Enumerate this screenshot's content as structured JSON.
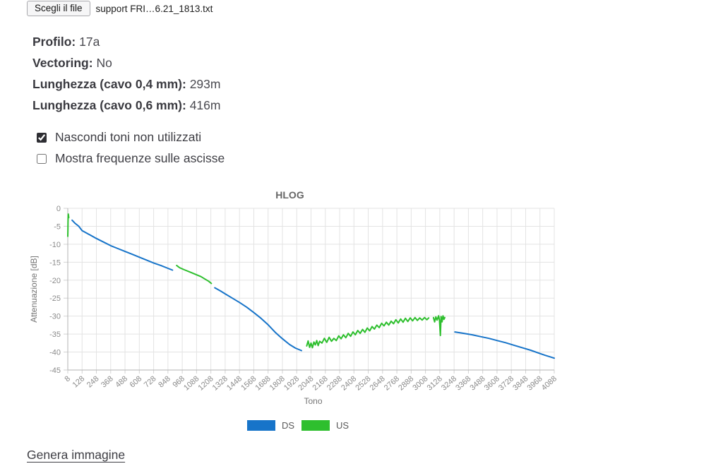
{
  "punct": {
    "colon": ": "
  },
  "file_input": {
    "button_label": "Scegli il file",
    "filename": "support FRI…6.21_1813.txt"
  },
  "info": [
    {
      "label": "Profilo",
      "value": "17a"
    },
    {
      "label": "Vectoring",
      "value": "No"
    },
    {
      "label": "Lunghezza (cavo 0,4 mm)",
      "value": "293m"
    },
    {
      "label": "Lunghezza (cavo 0,6 mm)",
      "value": "416m"
    }
  ],
  "options": [
    {
      "label": "Nascondi toni non utilizzati",
      "checked": true
    },
    {
      "label": "Mostra frequenze sulle ascisse",
      "checked": false
    }
  ],
  "actions": {
    "generate_link": "Genera immagine"
  },
  "chart_data": {
    "type": "line",
    "title": "HLOG",
    "xlabel": "Tono",
    "ylabel": "Attenuazione [dB]",
    "x_range": [
      8,
      4088
    ],
    "y_range": [
      -45,
      0
    ],
    "x_ticks": [
      8,
      128,
      248,
      368,
      488,
      608,
      728,
      848,
      968,
      1088,
      1208,
      1328,
      1448,
      1568,
      1688,
      1808,
      1928,
      2048,
      2168,
      2288,
      2408,
      2528,
      2648,
      2768,
      2888,
      3008,
      3128,
      3248,
      3368,
      3488,
      3608,
      3728,
      3848,
      3968,
      4088
    ],
    "y_ticks": [
      0,
      -5,
      -10,
      -15,
      -20,
      -25,
      -30,
      -35,
      -40,
      -45
    ],
    "grid": true,
    "legend_position": "bottom",
    "colors": {
      "grid": "#e3e3e3",
      "axis": "#b3b3b3",
      "tick_text": "#8a8a8a",
      "title_text": "#666666",
      "label_text": "#757575",
      "legend_text": "#595959"
    },
    "series": [
      {
        "name": "DS",
        "color": "#1774c9",
        "segments": [
          [
            [
              44,
              -3.3
            ],
            [
              70,
              -4.2
            ],
            [
              100,
              -5.0
            ],
            [
              128,
              -6.2
            ],
            [
              188,
              -7.3
            ],
            [
              248,
              -8.4
            ],
            [
              308,
              -9.4
            ],
            [
              368,
              -10.4
            ],
            [
              428,
              -11.2
            ],
            [
              488,
              -12.0
            ],
            [
              548,
              -12.8
            ],
            [
              608,
              -13.6
            ],
            [
              668,
              -14.4
            ],
            [
              728,
              -15.2
            ],
            [
              788,
              -15.9
            ],
            [
              848,
              -16.7
            ],
            [
              886,
              -17.2
            ]
          ],
          [
            [
              1241,
              -22.1
            ],
            [
              1288,
              -23.0
            ],
            [
              1328,
              -23.8
            ],
            [
              1388,
              -25.0
            ],
            [
              1448,
              -26.2
            ],
            [
              1508,
              -27.5
            ],
            [
              1568,
              -29.0
            ],
            [
              1628,
              -30.6
            ],
            [
              1688,
              -32.4
            ],
            [
              1748,
              -34.5
            ],
            [
              1808,
              -36.3
            ],
            [
              1868,
              -37.9
            ],
            [
              1918,
              -38.9
            ],
            [
              1968,
              -39.6
            ]
          ],
          [
            [
              3255,
              -34.4
            ],
            [
              3330,
              -34.8
            ],
            [
              3400,
              -35.2
            ],
            [
              3470,
              -35.7
            ],
            [
              3540,
              -36.2
            ],
            [
              3610,
              -36.8
            ],
            [
              3680,
              -37.4
            ],
            [
              3750,
              -38.1
            ],
            [
              3820,
              -38.8
            ],
            [
              3890,
              -39.5
            ],
            [
              3950,
              -40.2
            ],
            [
              4010,
              -40.9
            ],
            [
              4050,
              -41.3
            ],
            [
              4088,
              -41.7
            ]
          ]
        ]
      },
      {
        "name": "US",
        "color": "#2ebf2e",
        "segments": [
          [
            [
              8,
              -7.8
            ],
            [
              9,
              -6.0
            ],
            [
              10,
              -4.0
            ],
            [
              11,
              -2.3
            ],
            [
              12,
              -1.6
            ],
            [
              14,
              -1.9
            ],
            [
              16,
              -2.6
            ]
          ],
          [
            [
              921,
              -15.9
            ],
            [
              945,
              -16.5
            ],
            [
              985,
              -17.1
            ],
            [
              1030,
              -17.7
            ],
            [
              1080,
              -18.4
            ],
            [
              1125,
              -19.0
            ],
            [
              1160,
              -19.7
            ],
            [
              1190,
              -20.3
            ],
            [
              1212,
              -20.9
            ]
          ],
          [
            [
              2012,
              -38.3
            ],
            [
              2024,
              -36.9
            ],
            [
              2036,
              -38.7
            ],
            [
              2048,
              -37.5
            ],
            [
              2060,
              -38.8
            ],
            [
              2072,
              -37.2
            ],
            [
              2084,
              -38.0
            ],
            [
              2096,
              -36.8
            ],
            [
              2108,
              -38.2
            ],
            [
              2120,
              -37.0
            ],
            [
              2140,
              -37.5
            ],
            [
              2160,
              -36.2
            ],
            [
              2180,
              -37.3
            ],
            [
              2200,
              -35.9
            ],
            [
              2220,
              -37.0
            ],
            [
              2240,
              -36.2
            ],
            [
              2260,
              -36.8
            ],
            [
              2280,
              -35.5
            ],
            [
              2300,
              -36.3
            ],
            [
              2320,
              -35.2
            ],
            [
              2340,
              -36.0
            ],
            [
              2360,
              -34.8
            ],
            [
              2380,
              -35.6
            ],
            [
              2400,
              -34.4
            ],
            [
              2420,
              -35.2
            ],
            [
              2440,
              -34.0
            ],
            [
              2460,
              -34.8
            ],
            [
              2480,
              -33.7
            ],
            [
              2500,
              -34.5
            ],
            [
              2520,
              -33.3
            ],
            [
              2540,
              -34.1
            ],
            [
              2560,
              -32.9
            ],
            [
              2580,
              -33.6
            ],
            [
              2600,
              -32.5
            ],
            [
              2620,
              -33.2
            ],
            [
              2640,
              -32.0
            ],
            [
              2660,
              -32.7
            ],
            [
              2680,
              -31.7
            ],
            [
              2700,
              -32.5
            ],
            [
              2720,
              -31.4
            ],
            [
              2740,
              -32.1
            ],
            [
              2760,
              -31.0
            ],
            [
              2780,
              -31.9
            ],
            [
              2800,
              -30.8
            ],
            [
              2820,
              -31.7
            ],
            [
              2840,
              -30.6
            ],
            [
              2860,
              -31.5
            ],
            [
              2880,
              -30.5
            ],
            [
              2900,
              -31.3
            ],
            [
              2920,
              -30.4
            ],
            [
              2940,
              -31.2
            ],
            [
              2960,
              -30.5
            ],
            [
              2980,
              -31.1
            ],
            [
              3000,
              -30.4
            ],
            [
              3020,
              -31.0
            ],
            [
              3035,
              -30.5
            ]
          ],
          [
            [
              3075,
              -30.4
            ],
            [
              3085,
              -31.6
            ],
            [
              3095,
              -30.2
            ],
            [
              3105,
              -31.1
            ],
            [
              3118,
              -29.9
            ],
            [
              3126,
              -31.3
            ],
            [
              3133,
              -35.4
            ],
            [
              3139,
              -30.1
            ],
            [
              3147,
              -31.6
            ],
            [
              3155,
              -29.9
            ],
            [
              3163,
              -30.9
            ],
            [
              3170,
              -30.4
            ]
          ]
        ]
      }
    ]
  }
}
